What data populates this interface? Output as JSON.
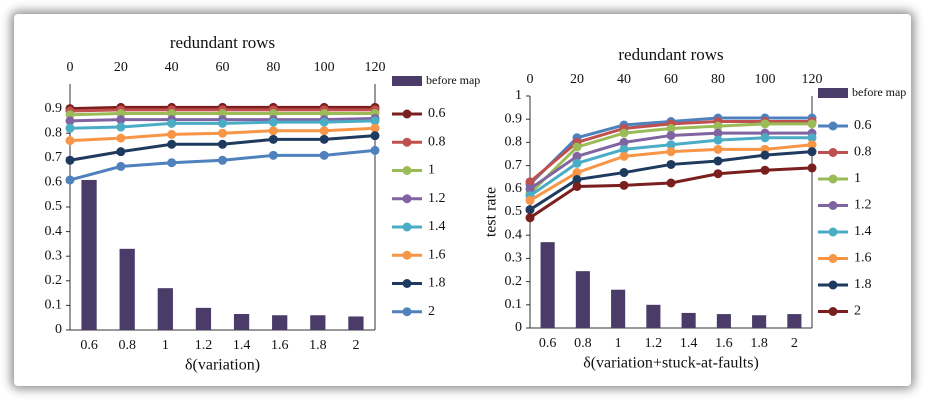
{
  "chart_data": [
    {
      "type": "combo",
      "top_xlabel": "redundant rows",
      "xlabel": "δ(variation)",
      "categories": [
        "0.6",
        "0.8",
        "1",
        "1.2",
        "1.4",
        "1.6",
        "1.8",
        "2"
      ],
      "bar_series": {
        "name": "before map",
        "color": "#4a3b68",
        "values": [
          0.61,
          0.33,
          0.17,
          0.09,
          0.065,
          0.06,
          0.06,
          0.055
        ]
      },
      "x": [
        0,
        20,
        40,
        60,
        80,
        100,
        120
      ],
      "xlim": [
        0,
        120
      ],
      "xticks": [
        0,
        20,
        40,
        60,
        80,
        100,
        120
      ],
      "ylim": [
        0,
        1
      ],
      "yticks": [
        0,
        0.1,
        0.2,
        0.3,
        0.4,
        0.5,
        0.6,
        0.7,
        0.8,
        0.9
      ],
      "series": [
        {
          "name": "0.6",
          "color": "#7b1e1e",
          "values": [
            0.9,
            0.905,
            0.905,
            0.905,
            0.905,
            0.905,
            0.905
          ]
        },
        {
          "name": "0.8",
          "color": "#c0504d",
          "values": [
            0.89,
            0.895,
            0.895,
            0.895,
            0.895,
            0.895,
            0.895
          ]
        },
        {
          "name": "1",
          "color": "#9bbb59",
          "values": [
            0.875,
            0.88,
            0.88,
            0.88,
            0.88,
            0.88,
            0.88
          ]
        },
        {
          "name": "1.2",
          "color": "#8064a2",
          "values": [
            0.85,
            0.855,
            0.855,
            0.855,
            0.855,
            0.855,
            0.86
          ]
        },
        {
          "name": "1.4",
          "color": "#4bacc6",
          "values": [
            0.82,
            0.825,
            0.84,
            0.84,
            0.845,
            0.845,
            0.85
          ]
        },
        {
          "name": "1.6",
          "color": "#f79646",
          "values": [
            0.77,
            0.78,
            0.795,
            0.8,
            0.81,
            0.81,
            0.82
          ]
        },
        {
          "name": "1.8",
          "color": "#1f3a5f",
          "values": [
            0.69,
            0.725,
            0.755,
            0.755,
            0.775,
            0.775,
            0.79
          ]
        },
        {
          "name": "2",
          "color": "#4f81bd",
          "values": [
            0.61,
            0.665,
            0.68,
            0.69,
            0.71,
            0.71,
            0.73
          ]
        }
      ]
    },
    {
      "type": "combo",
      "top_xlabel": "redundant rows",
      "xlabel": "δ(variation+stuck-at-faults)",
      "ylabel": "test rate",
      "categories": [
        "0.6",
        "0.8",
        "1",
        "1.2",
        "1.4",
        "1.6",
        "1.8",
        "2"
      ],
      "bar_series": {
        "name": "before map",
        "color": "#4a3b68",
        "values": [
          0.37,
          0.245,
          0.165,
          0.1,
          0.065,
          0.06,
          0.055,
          0.06
        ]
      },
      "x": [
        0,
        20,
        40,
        60,
        80,
        100,
        120
      ],
      "xlim": [
        0,
        120
      ],
      "xticks": [
        0,
        20,
        40,
        60,
        80,
        100,
        120
      ],
      "ylim": [
        0,
        1
      ],
      "yticks": [
        0,
        0.1,
        0.2,
        0.3,
        0.4,
        0.5,
        0.6,
        0.7,
        0.8,
        0.9,
        1
      ],
      "series": [
        {
          "name": "0.6",
          "color": "#4f81bd",
          "values": [
            0.62,
            0.82,
            0.875,
            0.89,
            0.905,
            0.905,
            0.905
          ]
        },
        {
          "name": "0.8",
          "color": "#c0504d",
          "values": [
            0.63,
            0.8,
            0.86,
            0.88,
            0.89,
            0.89,
            0.89
          ]
        },
        {
          "name": "1",
          "color": "#9bbb59",
          "values": [
            0.58,
            0.78,
            0.84,
            0.86,
            0.87,
            0.88,
            0.88
          ]
        },
        {
          "name": "1.2",
          "color": "#8064a2",
          "values": [
            0.6,
            0.74,
            0.8,
            0.83,
            0.84,
            0.84,
            0.84
          ]
        },
        {
          "name": "1.4",
          "color": "#4bacc6",
          "values": [
            0.57,
            0.71,
            0.77,
            0.79,
            0.81,
            0.82,
            0.82
          ]
        },
        {
          "name": "1.6",
          "color": "#f79646",
          "values": [
            0.55,
            0.67,
            0.74,
            0.76,
            0.77,
            0.77,
            0.79
          ]
        },
        {
          "name": "1.8",
          "color": "#1f3a5f",
          "values": [
            0.51,
            0.64,
            0.67,
            0.705,
            0.72,
            0.745,
            0.76
          ]
        },
        {
          "name": "2",
          "color": "#7b1e1e",
          "values": [
            0.475,
            0.61,
            0.615,
            0.625,
            0.665,
            0.68,
            0.69
          ]
        }
      ]
    }
  ]
}
